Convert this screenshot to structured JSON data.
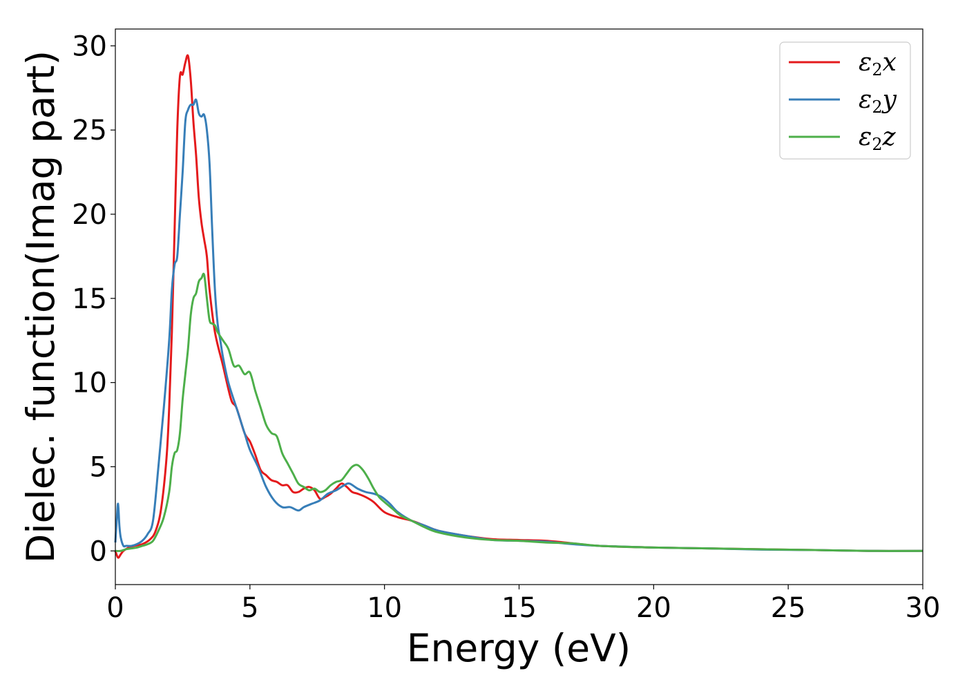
{
  "chart_data": {
    "type": "line",
    "xlabel": "Energy (eV)",
    "ylabel": "Dielec. function(Imag part)",
    "xlim": [
      0,
      30
    ],
    "ylim": [
      -2,
      31
    ],
    "xticks": [
      0,
      5,
      10,
      15,
      20,
      25,
      30
    ],
    "yticks": [
      0,
      5,
      10,
      15,
      20,
      25,
      30
    ],
    "grid": false,
    "legend_position": "top-right",
    "series": [
      {
        "name": "ε2x",
        "name_parts": {
          "base": "ε",
          "sub": "2",
          "axis": "x"
        },
        "color": "#e41a1c",
        "x": [
          0,
          0.1,
          0.2,
          0.3,
          0.5,
          0.7,
          1.0,
          1.3,
          1.5,
          1.7,
          1.9,
          2.0,
          2.1,
          2.2,
          2.3,
          2.4,
          2.5,
          2.6,
          2.7,
          2.8,
          2.9,
          3.0,
          3.1,
          3.2,
          3.3,
          3.4,
          3.5,
          3.7,
          4.0,
          4.3,
          4.5,
          4.8,
          5.0,
          5.2,
          5.4,
          5.6,
          5.8,
          6.0,
          6.2,
          6.4,
          6.6,
          6.8,
          7.0,
          7.2,
          7.4,
          7.6,
          7.8,
          8.0,
          8.2,
          8.4,
          8.6,
          8.8,
          9.0,
          9.3,
          9.6,
          10.0,
          10.5,
          11.0,
          11.5,
          12.0,
          13.0,
          14.0,
          15.0,
          16.0,
          17.0,
          18.0,
          20.0,
          22.0,
          24.0,
          26.0,
          28.0,
          30.0
        ],
        "y": [
          0.0,
          -0.4,
          -0.2,
          0.0,
          0.2,
          0.3,
          0.4,
          0.7,
          1.2,
          2.5,
          5.5,
          8.5,
          13.0,
          19.0,
          25.0,
          28.2,
          28.3,
          29.0,
          29.4,
          28.0,
          25.5,
          23.5,
          21.0,
          19.5,
          18.5,
          17.5,
          15.5,
          13.0,
          11.0,
          9.0,
          8.5,
          7.0,
          6.5,
          5.7,
          4.8,
          4.5,
          4.2,
          4.1,
          3.9,
          3.9,
          3.5,
          3.5,
          3.7,
          3.8,
          3.6,
          3.1,
          3.2,
          3.4,
          3.7,
          4.0,
          3.8,
          3.5,
          3.4,
          3.2,
          2.9,
          2.3,
          2.0,
          1.8,
          1.5,
          1.2,
          0.9,
          0.7,
          0.65,
          0.6,
          0.45,
          0.3,
          0.2,
          0.15,
          0.1,
          0.05,
          0.0,
          0.0
        ]
      },
      {
        "name": "ε2y",
        "name_parts": {
          "base": "ε",
          "sub": "2",
          "axis": "y"
        },
        "color": "#377eb8",
        "x": [
          0,
          0.05,
          0.1,
          0.15,
          0.2,
          0.3,
          0.4,
          0.6,
          0.8,
          1.0,
          1.2,
          1.4,
          1.6,
          1.8,
          2.0,
          2.1,
          2.2,
          2.3,
          2.4,
          2.5,
          2.6,
          2.7,
          2.8,
          2.9,
          3.0,
          3.1,
          3.2,
          3.3,
          3.4,
          3.5,
          3.6,
          3.7,
          3.8,
          3.9,
          4.0,
          4.2,
          4.5,
          4.8,
          5.0,
          5.3,
          5.6,
          5.9,
          6.2,
          6.5,
          6.8,
          7.0,
          7.3,
          7.6,
          7.9,
          8.2,
          8.5,
          8.7,
          9.0,
          9.3,
          9.6,
          9.9,
          10.2,
          10.5,
          11.0,
          11.5,
          12.0,
          13.0,
          14.0,
          15.0,
          16.0,
          17.0,
          18.0,
          20.0,
          22.0,
          24.0,
          26.0,
          28.0,
          30.0
        ],
        "y": [
          0.5,
          1.8,
          2.8,
          1.5,
          0.8,
          0.3,
          0.3,
          0.3,
          0.4,
          0.6,
          1.0,
          1.8,
          5.0,
          8.5,
          12.5,
          15.5,
          17.0,
          17.5,
          20.0,
          22.5,
          25.5,
          26.2,
          26.5,
          26.5,
          26.8,
          26.0,
          25.8,
          25.9,
          25.0,
          23.0,
          19.0,
          15.5,
          13.5,
          12.5,
          11.5,
          10.0,
          8.5,
          7.0,
          6.0,
          5.0,
          3.8,
          3.0,
          2.6,
          2.6,
          2.4,
          2.6,
          2.8,
          3.0,
          3.4,
          3.6,
          3.9,
          4.0,
          3.7,
          3.5,
          3.4,
          3.2,
          2.8,
          2.3,
          1.8,
          1.5,
          1.2,
          0.9,
          0.65,
          0.6,
          0.55,
          0.4,
          0.3,
          0.2,
          0.15,
          0.08,
          0.05,
          0.0,
          0.0
        ]
      },
      {
        "name": "ε2z",
        "name_parts": {
          "base": "ε",
          "sub": "2",
          "axis": "z"
        },
        "color": "#4daf4a",
        "x": [
          0,
          0.2,
          0.4,
          0.6,
          0.8,
          1.0,
          1.2,
          1.4,
          1.6,
          1.8,
          2.0,
          2.1,
          2.2,
          2.3,
          2.4,
          2.5,
          2.6,
          2.7,
          2.8,
          2.9,
          3.0,
          3.1,
          3.2,
          3.3,
          3.4,
          3.5,
          3.6,
          3.7,
          3.8,
          4.0,
          4.2,
          4.4,
          4.6,
          4.8,
          5.0,
          5.2,
          5.4,
          5.6,
          5.8,
          6.0,
          6.2,
          6.4,
          6.6,
          6.8,
          7.0,
          7.2,
          7.4,
          7.6,
          7.8,
          8.0,
          8.2,
          8.4,
          8.6,
          8.8,
          9.0,
          9.2,
          9.4,
          9.6,
          9.8,
          10.0,
          10.3,
          10.6,
          11.0,
          11.5,
          12.0,
          13.0,
          14.0,
          15.0,
          16.0,
          17.0,
          18.0,
          20.0,
          22.0,
          24.0,
          26.0,
          28.0,
          30.0
        ],
        "y": [
          0.0,
          0.0,
          0.1,
          0.15,
          0.2,
          0.3,
          0.4,
          0.6,
          1.2,
          2.0,
          3.5,
          5.0,
          5.8,
          6.0,
          7.0,
          9.0,
          10.5,
          12.0,
          14.0,
          15.0,
          15.3,
          16.0,
          16.2,
          16.4,
          15.0,
          13.7,
          13.5,
          13.4,
          13.0,
          12.5,
          12.0,
          11.0,
          11.0,
          10.5,
          10.6,
          9.5,
          8.5,
          7.5,
          7.0,
          6.8,
          5.8,
          5.2,
          4.6,
          4.0,
          3.8,
          3.6,
          3.7,
          3.5,
          3.6,
          3.9,
          4.1,
          4.2,
          4.6,
          5.0,
          5.1,
          4.8,
          4.3,
          3.7,
          3.2,
          2.9,
          2.5,
          2.1,
          1.8,
          1.4,
          1.1,
          0.8,
          0.65,
          0.6,
          0.5,
          0.45,
          0.3,
          0.2,
          0.15,
          0.1,
          0.05,
          0.0,
          0.0
        ]
      }
    ]
  }
}
